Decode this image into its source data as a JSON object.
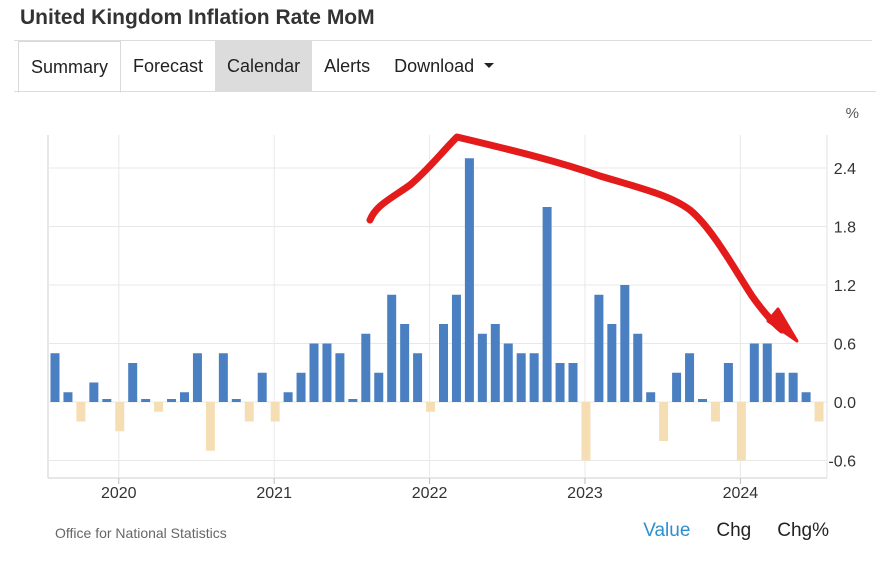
{
  "page": {
    "title": "United Kingdom Inflation Rate MoM"
  },
  "tabs": [
    {
      "label": "Summary",
      "state": "active"
    },
    {
      "label": "Forecast",
      "state": "normal"
    },
    {
      "label": "Calendar",
      "state": "shaded"
    },
    {
      "label": "Alerts",
      "state": "normal"
    },
    {
      "label": "Download",
      "state": "dropdown"
    }
  ],
  "source": "Office for National Statistics",
  "view_options": [
    {
      "label": "Value",
      "selected": true
    },
    {
      "label": "Chg",
      "selected": false
    },
    {
      "label": "Chg%",
      "selected": false
    }
  ],
  "colors": {
    "positive": "#4a7fc1",
    "negative": "#f5deb3",
    "annotation": "#e31b1b",
    "selected_option": "#2c8fd0"
  },
  "chart_data": {
    "type": "bar",
    "unit_label": "%",
    "x_ticks": [
      "2020",
      "2021",
      "2022",
      "2023",
      "2024"
    ],
    "y_ticks": [
      "2.4",
      "1.8",
      "1.2",
      "0.6",
      "0.0",
      "-0.6"
    ],
    "ylim": [
      -0.75,
      2.75
    ],
    "grid": true,
    "start": "2019-08",
    "values": [
      0.5,
      0.1,
      -0.2,
      0.2,
      0.0,
      -0.3,
      0.4,
      0.0,
      -0.1,
      0.0,
      0.1,
      0.5,
      -0.5,
      0.5,
      0.0,
      -0.2,
      0.3,
      -0.2,
      0.1,
      0.3,
      0.6,
      0.6,
      0.5,
      0.0,
      0.7,
      0.3,
      1.1,
      0.8,
      0.5,
      -0.1,
      0.8,
      1.1,
      2.5,
      0.7,
      0.8,
      0.6,
      0.5,
      0.5,
      2.0,
      0.4,
      0.4,
      -0.6,
      1.1,
      0.8,
      1.2,
      0.7,
      0.1,
      -0.4,
      0.3,
      0.5,
      0.0,
      -0.2,
      0.4,
      -0.6,
      0.6,
      0.6,
      0.3,
      0.3,
      0.1,
      -0.2
    ],
    "annotation": "red hand-drawn arrow rising to a peak around 2022 then falling to 2024"
  }
}
